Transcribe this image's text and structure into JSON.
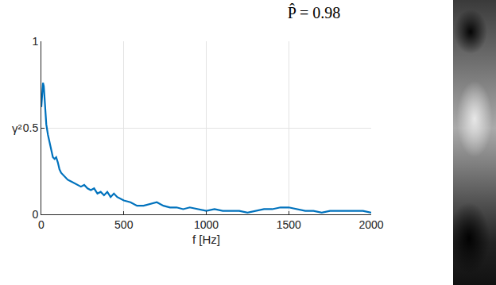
{
  "chart_data": {
    "type": "line",
    "title": "P̂ = 0.98",
    "x_label": "f [Hz]",
    "y_label": "γ²",
    "x": [
      0,
      5,
      10,
      15,
      20,
      25,
      30,
      40,
      50,
      60,
      70,
      80,
      90,
      100,
      110,
      120,
      140,
      160,
      180,
      200,
      220,
      240,
      260,
      280,
      300,
      320,
      340,
      360,
      380,
      400,
      420,
      440,
      460,
      480,
      500,
      540,
      580,
      620,
      660,
      700,
      740,
      780,
      820,
      860,
      900,
      950,
      1000,
      1050,
      1100,
      1150,
      1200,
      1250,
      1300,
      1350,
      1400,
      1450,
      1500,
      1550,
      1600,
      1650,
      1700,
      1750,
      1800,
      1850,
      1900,
      1950,
      2000
    ],
    "values": [
      0.62,
      0.7,
      0.76,
      0.74,
      0.66,
      0.58,
      0.52,
      0.46,
      0.42,
      0.38,
      0.33,
      0.32,
      0.33,
      0.3,
      0.26,
      0.24,
      0.22,
      0.2,
      0.19,
      0.18,
      0.17,
      0.16,
      0.17,
      0.15,
      0.14,
      0.15,
      0.12,
      0.13,
      0.11,
      0.13,
      0.1,
      0.12,
      0.1,
      0.09,
      0.08,
      0.07,
      0.05,
      0.05,
      0.06,
      0.07,
      0.05,
      0.04,
      0.04,
      0.03,
      0.04,
      0.03,
      0.02,
      0.03,
      0.02,
      0.02,
      0.02,
      0.01,
      0.02,
      0.03,
      0.03,
      0.04,
      0.04,
      0.03,
      0.02,
      0.02,
      0.01,
      0.02,
      0.02,
      0.02,
      0.02,
      0.02,
      0.01
    ],
    "color": "#0072bd",
    "xlim": [
      0,
      2000
    ],
    "xticks": [
      0,
      500,
      1000,
      1500,
      2000
    ],
    "ylim": [
      0,
      1
    ],
    "yticks": [
      0,
      0.5,
      1
    ],
    "grid": true
  }
}
